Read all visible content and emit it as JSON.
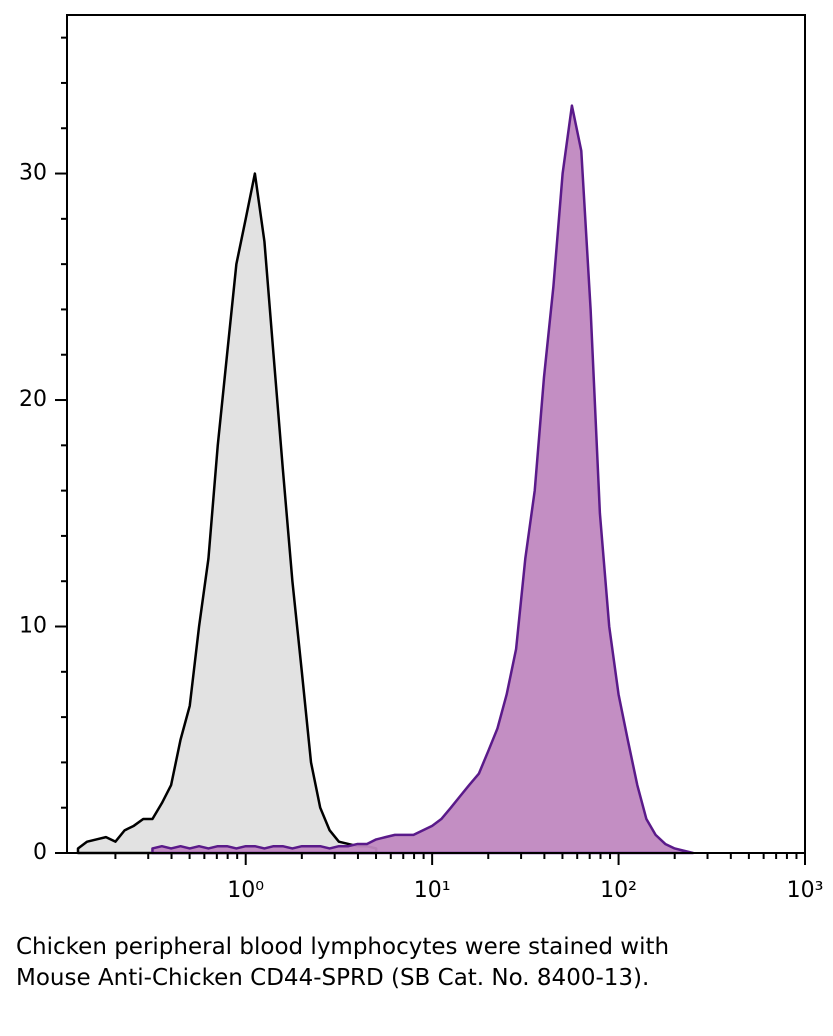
{
  "chart_data": {
    "type": "histogram-overlay",
    "caption": "Chicken peripheral blood lymphocytes were stained with Mouse Anti-Chicken CD44-SPRD (SB Cat. No. 8400-13).",
    "xscale": "log",
    "xlim": [
      0.11,
      1000
    ],
    "ylim": [
      0,
      37
    ],
    "xticks": [
      {
        "value": 1,
        "label": "10⁰"
      },
      {
        "value": 10,
        "label": "10¹"
      },
      {
        "value": 100,
        "label": "10²"
      },
      {
        "value": 1000,
        "label": "10³"
      }
    ],
    "xminorticks": [
      0.2,
      0.3,
      0.4,
      0.5,
      0.6,
      0.7,
      0.8,
      0.9,
      2,
      3,
      4,
      5,
      6,
      7,
      8,
      9,
      20,
      30,
      40,
      50,
      60,
      70,
      80,
      90,
      200,
      300,
      400,
      500,
      600,
      700,
      800,
      900
    ],
    "yticks": [
      0,
      10,
      20,
      30
    ],
    "yminorticks": [
      2,
      4,
      6,
      8,
      12,
      14,
      16,
      18,
      22,
      24,
      26,
      28,
      32,
      34,
      36
    ],
    "x": [
      0.126,
      0.141,
      0.158,
      0.178,
      0.2,
      0.224,
      0.251,
      0.282,
      0.316,
      0.355,
      0.398,
      0.447,
      0.501,
      0.562,
      0.631,
      0.708,
      0.794,
      0.891,
      1,
      1.12,
      1.26,
      1.41,
      1.58,
      1.78,
      2,
      2.24,
      2.51,
      2.82,
      3.16,
      3.55,
      3.98,
      4.47,
      5.01,
      5.62,
      6.31,
      7.08,
      7.94,
      8.91,
      10,
      11.2,
      12.6,
      14.1,
      15.8,
      17.8,
      20,
      22.4,
      25.1,
      28.2,
      31.6,
      35.5,
      39.8,
      44.7,
      50.1,
      56.2,
      63.1,
      70.8,
      79.4,
      89.1,
      100,
      112,
      126,
      141,
      158,
      178,
      200,
      224,
      251,
      282,
      316
    ],
    "series": [
      {
        "color": "#000000",
        "fill": "#e0e0e0",
        "values": [
          0.2,
          0.5,
          0.6,
          0.7,
          0.5,
          1,
          1.2,
          1.5,
          1.5,
          2.2,
          3,
          5,
          6.5,
          10,
          13,
          18,
          22,
          26,
          28,
          30,
          27,
          22,
          17,
          12,
          8,
          4,
          2,
          1,
          0.5,
          0.4,
          0.3,
          0.3,
          0.2,
          null,
          null,
          null,
          null,
          null,
          null,
          null,
          null,
          null,
          null,
          null,
          null,
          null,
          null,
          null,
          null,
          null,
          null,
          null,
          null,
          null,
          null,
          null,
          null,
          null,
          null,
          null,
          null,
          null,
          null,
          null,
          null,
          null,
          null,
          null,
          null
        ]
      },
      {
        "color": "#5a1a8a",
        "fill": "#c088c0",
        "values": [
          null,
          null,
          null,
          null,
          null,
          null,
          null,
          null,
          0.2,
          0.3,
          0.2,
          0.3,
          0.2,
          0.3,
          0.2,
          0.3,
          0.3,
          0.2,
          0.3,
          0.3,
          0.2,
          0.3,
          0.3,
          0.2,
          0.3,
          0.3,
          0.3,
          0.2,
          0.3,
          0.3,
          0.4,
          0.4,
          0.6,
          0.7,
          0.8,
          0.8,
          0.8,
          1,
          1.2,
          1.5,
          2,
          2.5,
          3,
          3.5,
          4.5,
          5.5,
          7,
          9,
          13,
          16,
          21,
          25,
          30,
          33,
          31,
          24,
          15,
          10,
          7,
          5,
          3,
          1.5,
          0.8,
          0.4,
          0.2,
          0.1,
          0,
          null,
          null
        ]
      }
    ]
  }
}
